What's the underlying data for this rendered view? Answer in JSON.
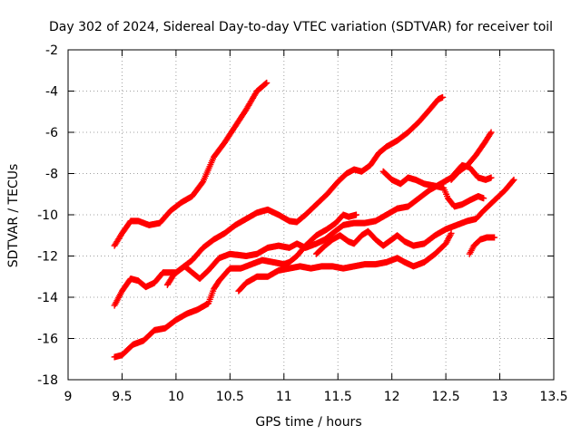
{
  "chart_data": {
    "type": "scatter",
    "title": "Day 302 of 2024, Sidereal Day-to-day VTEC variation (SDTVAR) for receiver toil",
    "xlabel": "GPS time / hours",
    "ylabel": "SDTVAR / TECUs",
    "xlim": [
      9,
      13.5
    ],
    "ylim": [
      -18,
      -2
    ],
    "xticks": [
      "9",
      "9.5",
      "10",
      "10.5",
      "11",
      "11.5",
      "12",
      "12.5",
      "13",
      "13.5"
    ],
    "yticks": [
      "-2",
      "-4",
      "-6",
      "-8",
      "-10",
      "-12",
      "-14",
      "-16",
      "-18"
    ],
    "grid": true,
    "marker": "+",
    "color": "#ff0000",
    "series": [
      {
        "name": "track-1",
        "points": [
          [
            9.43,
            -11.5
          ],
          [
            9.5,
            -10.9
          ],
          [
            9.58,
            -10.3
          ],
          [
            9.65,
            -10.3
          ],
          [
            9.75,
            -10.5
          ],
          [
            9.85,
            -10.4
          ],
          [
            9.95,
            -9.8
          ],
          [
            10.05,
            -9.4
          ],
          [
            10.15,
            -9.1
          ],
          [
            10.25,
            -8.4
          ],
          [
            10.35,
            -7.2
          ],
          [
            10.45,
            -6.5
          ],
          [
            10.55,
            -5.7
          ],
          [
            10.65,
            -4.9
          ],
          [
            10.75,
            -4.0
          ],
          [
            10.84,
            -3.6
          ]
        ]
      },
      {
        "name": "track-2",
        "points": [
          [
            9.43,
            -14.4
          ],
          [
            9.5,
            -13.7
          ],
          [
            9.58,
            -13.1
          ],
          [
            9.65,
            -13.2
          ],
          [
            9.72,
            -13.5
          ],
          [
            9.8,
            -13.3
          ],
          [
            9.88,
            -12.8
          ],
          [
            9.95,
            -12.8
          ],
          [
            10.0,
            -12.8
          ],
          [
            10.08,
            -12.5
          ],
          [
            10.15,
            -12.8
          ],
          [
            10.22,
            -13.1
          ],
          [
            10.3,
            -12.7
          ],
          [
            10.4,
            -12.1
          ],
          [
            10.5,
            -11.9
          ],
          [
            10.65,
            -12.0
          ],
          [
            10.75,
            -11.9
          ],
          [
            10.85,
            -11.6
          ],
          [
            10.95,
            -11.5
          ],
          [
            11.05,
            -11.6
          ],
          [
            11.12,
            -11.4
          ],
          [
            11.2,
            -11.6
          ],
          [
            11.3,
            -11.4
          ],
          [
            11.38,
            -11.2
          ],
          [
            11.45,
            -10.9
          ],
          [
            11.55,
            -10.5
          ],
          [
            11.65,
            -10.4
          ],
          [
            11.75,
            -10.4
          ],
          [
            11.85,
            -10.3
          ],
          [
            11.95,
            -10.0
          ],
          [
            12.05,
            -9.7
          ],
          [
            12.15,
            -9.6
          ],
          [
            12.25,
            -9.2
          ],
          [
            12.35,
            -8.8
          ],
          [
            12.45,
            -8.5
          ],
          [
            12.55,
            -8.2
          ],
          [
            12.65,
            -7.6
          ],
          [
            12.72,
            -7.7
          ],
          [
            12.8,
            -8.2
          ],
          [
            12.87,
            -8.3
          ],
          [
            12.92,
            -8.2
          ]
        ]
      },
      {
        "name": "track-3",
        "points": [
          [
            9.43,
            -16.9
          ],
          [
            9.5,
            -16.8
          ],
          [
            9.6,
            -16.3
          ],
          [
            9.7,
            -16.1
          ],
          [
            9.8,
            -15.6
          ],
          [
            9.9,
            -15.5
          ],
          [
            10.0,
            -15.1
          ],
          [
            10.1,
            -14.8
          ],
          [
            10.2,
            -14.6
          ],
          [
            10.3,
            -14.3
          ],
          [
            10.35,
            -13.6
          ],
          [
            10.4,
            -13.2
          ],
          [
            10.5,
            -12.6
          ],
          [
            10.6,
            -12.6
          ],
          [
            10.7,
            -12.4
          ],
          [
            10.8,
            -12.2
          ],
          [
            10.9,
            -12.3
          ],
          [
            11.0,
            -12.4
          ],
          [
            11.05,
            -12.3
          ],
          [
            11.12,
            -12.0
          ],
          [
            11.2,
            -11.5
          ],
          [
            11.3,
            -11.0
          ],
          [
            11.4,
            -10.7
          ],
          [
            11.48,
            -10.4
          ],
          [
            11.55,
            -10.0
          ],
          [
            11.6,
            -10.1
          ],
          [
            11.67,
            -10.0
          ]
        ]
      },
      {
        "name": "track-4",
        "points": [
          [
            9.92,
            -13.4
          ],
          [
            9.98,
            -12.9
          ],
          [
            10.05,
            -12.6
          ],
          [
            10.15,
            -12.2
          ],
          [
            10.25,
            -11.6
          ],
          [
            10.35,
            -11.2
          ],
          [
            10.45,
            -10.9
          ],
          [
            10.55,
            -10.5
          ],
          [
            10.65,
            -10.2
          ],
          [
            10.75,
            -9.9
          ],
          [
            10.85,
            -9.75
          ],
          [
            10.95,
            -10.0
          ],
          [
            11.05,
            -10.3
          ],
          [
            11.12,
            -10.35
          ],
          [
            11.2,
            -10.0
          ],
          [
            11.3,
            -9.5
          ],
          [
            11.4,
            -9.0
          ],
          [
            11.5,
            -8.4
          ],
          [
            11.58,
            -8.0
          ],
          [
            11.65,
            -7.8
          ],
          [
            11.72,
            -7.9
          ],
          [
            11.8,
            -7.6
          ],
          [
            11.88,
            -7.0
          ],
          [
            11.95,
            -6.7
          ],
          [
            12.05,
            -6.4
          ],
          [
            12.15,
            -6.0
          ],
          [
            12.25,
            -5.5
          ],
          [
            12.35,
            -4.9
          ],
          [
            12.43,
            -4.4
          ],
          [
            12.47,
            -4.3
          ]
        ]
      },
      {
        "name": "track-5",
        "points": [
          [
            10.58,
            -13.7
          ],
          [
            10.65,
            -13.3
          ],
          [
            10.75,
            -13.0
          ],
          [
            10.85,
            -13.0
          ],
          [
            10.95,
            -12.7
          ],
          [
            11.05,
            -12.6
          ],
          [
            11.15,
            -12.5
          ],
          [
            11.25,
            -12.6
          ],
          [
            11.35,
            -12.5
          ],
          [
            11.45,
            -12.5
          ],
          [
            11.55,
            -12.6
          ],
          [
            11.65,
            -12.5
          ],
          [
            11.75,
            -12.4
          ],
          [
            11.85,
            -12.4
          ],
          [
            11.95,
            -12.3
          ],
          [
            12.05,
            -12.1
          ],
          [
            12.12,
            -12.3
          ],
          [
            12.2,
            -12.5
          ],
          [
            12.3,
            -12.3
          ],
          [
            12.4,
            -11.9
          ],
          [
            12.5,
            -11.4
          ],
          [
            12.55,
            -10.9
          ]
        ]
      },
      {
        "name": "track-6",
        "points": [
          [
            11.3,
            -11.9
          ],
          [
            11.38,
            -11.5
          ],
          [
            11.45,
            -11.2
          ],
          [
            11.52,
            -11.0
          ],
          [
            11.6,
            -11.3
          ],
          [
            11.65,
            -11.4
          ],
          [
            11.72,
            -11.0
          ],
          [
            11.78,
            -10.8
          ],
          [
            11.85,
            -11.2
          ],
          [
            11.92,
            -11.5
          ],
          [
            12.0,
            -11.2
          ],
          [
            12.05,
            -11.0
          ],
          [
            12.12,
            -11.3
          ],
          [
            12.2,
            -11.5
          ],
          [
            12.3,
            -11.4
          ],
          [
            12.4,
            -11.0
          ],
          [
            12.5,
            -10.7
          ],
          [
            12.6,
            -10.5
          ],
          [
            12.7,
            -10.3
          ],
          [
            12.78,
            -10.2
          ],
          [
            12.85,
            -9.8
          ],
          [
            12.95,
            -9.3
          ],
          [
            13.05,
            -8.8
          ],
          [
            13.13,
            -8.3
          ]
        ]
      },
      {
        "name": "track-7",
        "points": [
          [
            11.92,
            -7.9
          ],
          [
            12.0,
            -8.3
          ],
          [
            12.08,
            -8.5
          ],
          [
            12.15,
            -8.2
          ],
          [
            12.22,
            -8.3
          ],
          [
            12.3,
            -8.5
          ],
          [
            12.4,
            -8.6
          ],
          [
            12.48,
            -8.7
          ],
          [
            12.52,
            -9.2
          ],
          [
            12.58,
            -9.6
          ],
          [
            12.65,
            -9.5
          ],
          [
            12.72,
            -9.3
          ],
          [
            12.8,
            -9.1
          ],
          [
            12.85,
            -9.2
          ]
        ]
      },
      {
        "name": "track-8",
        "points": [
          [
            12.55,
            -8.3
          ],
          [
            12.62,
            -7.9
          ],
          [
            12.7,
            -7.6
          ],
          [
            12.78,
            -7.1
          ],
          [
            12.86,
            -6.5
          ],
          [
            12.92,
            -6.0
          ]
        ]
      },
      {
        "name": "track-9",
        "points": [
          [
            12.72,
            -11.9
          ],
          [
            12.76,
            -11.5
          ],
          [
            12.82,
            -11.2
          ],
          [
            12.88,
            -11.1
          ],
          [
            12.95,
            -11.1
          ]
        ]
      }
    ]
  }
}
